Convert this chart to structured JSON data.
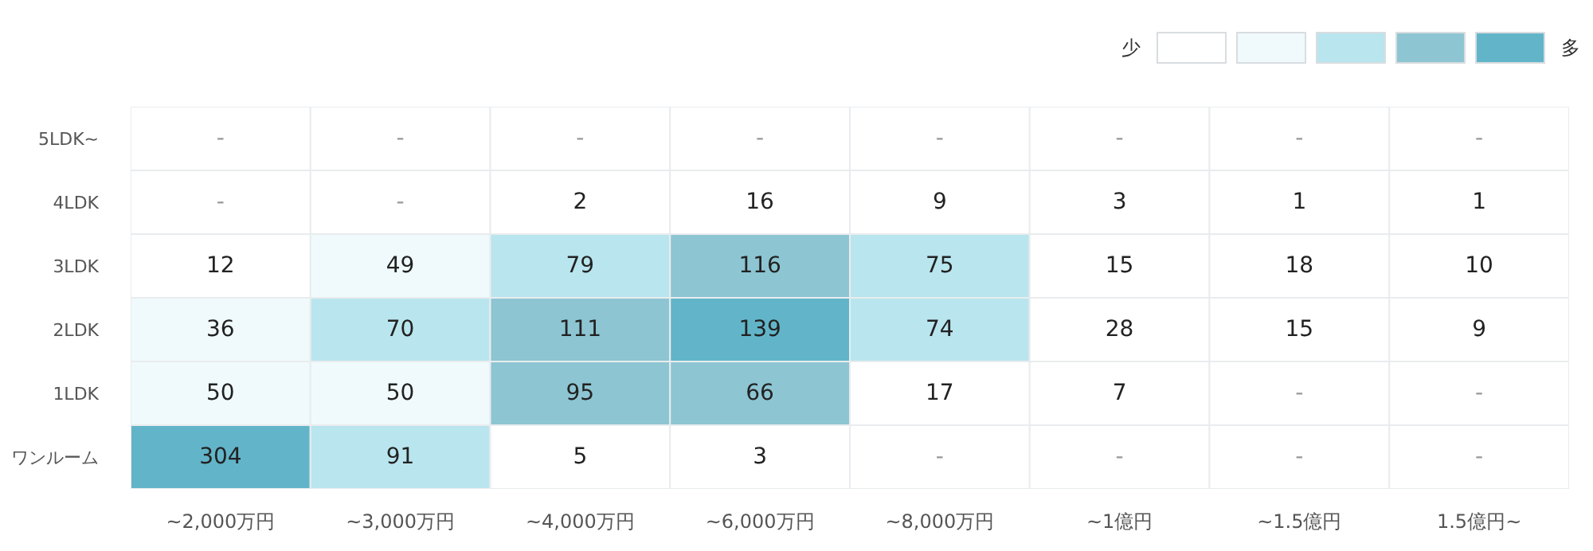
{
  "chart_data": {
    "type": "heatmap",
    "categories": [
      "~2,000万円",
      "~3,000万円",
      "~4,000万円",
      "~6,000万円",
      "~8,000万円",
      "~1億円",
      "~1.5億円",
      "1.5億円~"
    ],
    "y_categories": [
      "5LDK~",
      "4LDK",
      "3LDK",
      "2LDK",
      "1LDK",
      "ワンルーム"
    ],
    "cells": [
      [
        null,
        null,
        null,
        null,
        null,
        null,
        null,
        null
      ],
      [
        null,
        null,
        2,
        16,
        9,
        3,
        1,
        1
      ],
      [
        12,
        49,
        79,
        116,
        75,
        15,
        18,
        10
      ],
      [
        36,
        70,
        111,
        139,
        74,
        28,
        15,
        9
      ],
      [
        50,
        50,
        95,
        66,
        17,
        7,
        null,
        null
      ],
      [
        304,
        91,
        5,
        3,
        null,
        null,
        null,
        null
      ]
    ],
    "cell_labels": [
      [
        "-",
        "-",
        "-",
        "-",
        "-",
        "-",
        "-",
        "-"
      ],
      [
        "-",
        "-",
        "2",
        "16",
        "9",
        "3",
        "1",
        "1"
      ],
      [
        "12",
        "49",
        "79",
        "116",
        "75",
        "15",
        "18",
        "10"
      ],
      [
        "36",
        "70",
        "111",
        "139",
        "74",
        "28",
        "15",
        "9"
      ],
      [
        "50",
        "50",
        "95",
        "66",
        "17",
        "7",
        "-",
        "-"
      ],
      [
        "304",
        "91",
        "5",
        "3",
        "-",
        "-",
        "-",
        "-"
      ]
    ],
    "colors": [
      [
        "#ffffff",
        "#ffffff",
        "#ffffff",
        "#ffffff",
        "#ffffff",
        "#ffffff",
        "#ffffff",
        "#ffffff"
      ],
      [
        "#ffffff",
        "#ffffff",
        "#ffffff",
        "#ffffff",
        "#ffffff",
        "#ffffff",
        "#ffffff",
        "#ffffff"
      ],
      [
        "#ffffff",
        "#f0fafc",
        "#b9e5ee",
        "#8dc5d2",
        "#b9e5ee",
        "#ffffff",
        "#ffffff",
        "#ffffff"
      ],
      [
        "#f0fafc",
        "#b9e5ee",
        "#8dc5d2",
        "#62b5c9",
        "#b9e5ee",
        "#ffffff",
        "#ffffff",
        "#ffffff"
      ],
      [
        "#f0fafc",
        "#f0fafc",
        "#8dc5d2",
        "#8dc5d2",
        "#ffffff",
        "#ffffff",
        "#ffffff",
        "#ffffff"
      ],
      [
        "#62b5c9",
        "#b9e5ee",
        "#ffffff",
        "#ffffff",
        "#ffffff",
        "#ffffff",
        "#ffffff",
        "#ffffff"
      ]
    ],
    "annotations": [
      "少",
      "多"
    ]
  }
}
